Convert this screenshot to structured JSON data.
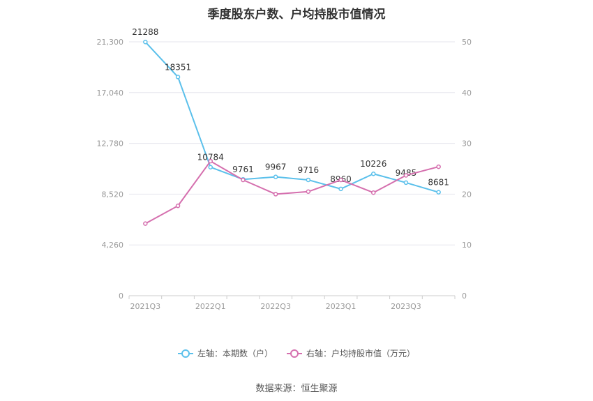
{
  "chart_data": {
    "type": "line",
    "title": "季度股东户数、户均持股市值情况",
    "categories": [
      "2021Q3",
      "2021Q4",
      "2022Q1",
      "2022Q2",
      "2022Q3",
      "2022Q4",
      "2023Q1",
      "2023Q2",
      "2023Q3",
      "2023Q4"
    ],
    "x_tick_labels": [
      "2021Q3",
      "",
      "2022Q1",
      "",
      "2022Q3",
      "",
      "2023Q1",
      "",
      "2023Q3",
      ""
    ],
    "y_left": {
      "ticks": [
        0,
        4260,
        8520,
        12780,
        17040,
        21300
      ],
      "tick_labels": [
        "0",
        "4,260",
        "8,520",
        "12,780",
        "17,040",
        "21,300"
      ],
      "ylim": [
        0,
        21300
      ]
    },
    "y_right": {
      "ticks": [
        0,
        10,
        20,
        30,
        40,
        50
      ],
      "tick_labels": [
        "0",
        "10",
        "20",
        "30",
        "40",
        "50"
      ],
      "ylim": [
        0,
        50
      ]
    },
    "grid": true,
    "legend_position": "bottom",
    "series": [
      {
        "name": "左轴：本期数（户）",
        "axis": "left",
        "color": "#5bc0eb",
        "values": [
          21288,
          18351,
          10784,
          9761,
          9967,
          9716,
          8960,
          10226,
          9485,
          8681
        ],
        "labels": [
          "21288",
          "18351",
          "10784",
          "9761",
          "9967",
          "9716",
          "8960",
          "10226",
          "9485",
          "8681"
        ]
      },
      {
        "name": "右轴：户均持股市值（万元）",
        "axis": "right",
        "color": "#d56fae",
        "values": [
          14.2,
          17.7,
          26.5,
          22.8,
          20.0,
          20.5,
          22.8,
          20.3,
          23.7,
          25.4
        ]
      }
    ]
  },
  "source_note": "数据来源：恒生聚源"
}
